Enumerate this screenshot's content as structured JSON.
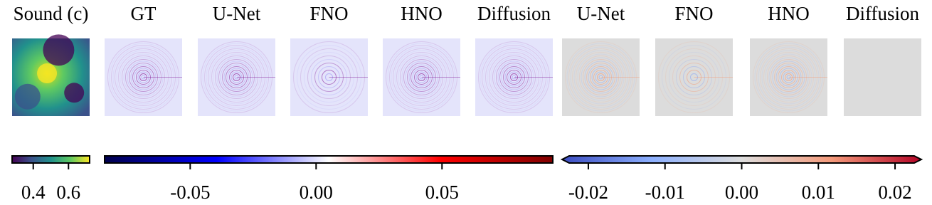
{
  "panels": [
    {
      "title": "Sound (c)"
    },
    {
      "title": "GT"
    },
    {
      "title": "U-Net"
    },
    {
      "title": "FNO"
    },
    {
      "title": "HNO"
    },
    {
      "title": "Diffusion"
    },
    {
      "title": "U-Net"
    },
    {
      "title": "FNO"
    },
    {
      "title": "HNO"
    },
    {
      "title": "Diffusion"
    }
  ],
  "colorbars": [
    {
      "lim": [
        0.28,
        0.72
      ],
      "ticks": [
        0.4,
        0.6
      ]
    },
    {
      "lim": [
        -0.084,
        0.094
      ],
      "ticks": [
        -0.05,
        {
          "value": 0,
          "label": "0.00"
        },
        0.05
      ]
    },
    {
      "lim": [
        -0.0225,
        0.0225
      ],
      "ticks": [
        -0.02,
        -0.01,
        {
          "value": 0,
          "label": "0.00"
        },
        0.01,
        0.02
      ]
    }
  ]
}
